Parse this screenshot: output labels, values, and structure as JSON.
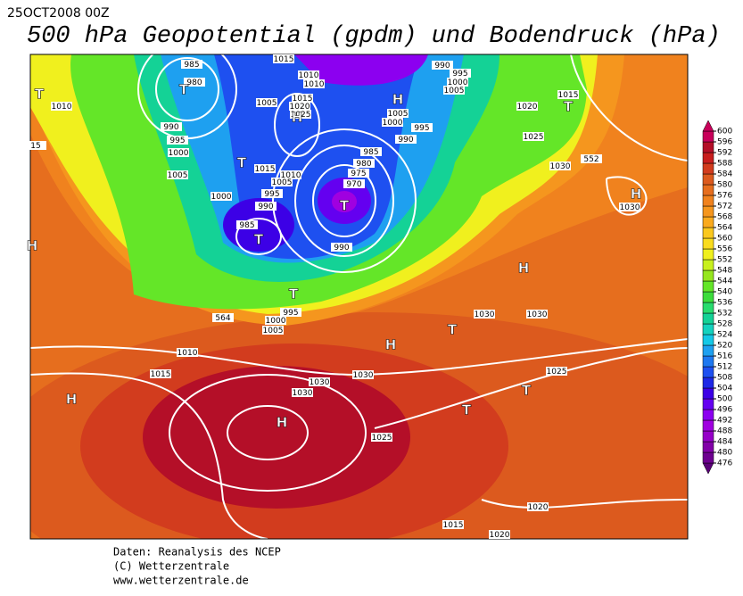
{
  "header": {
    "date": "25OCT2008 00Z",
    "title": "500 hPa Geopotential (gpdm) und Bodendruck (hPa)"
  },
  "footer": [
    "Daten: Reanalysis des NCEP",
    "(C) Wetterzentrale",
    "www.wetterzentrale.de"
  ],
  "colorbar": {
    "levels": [
      476,
      480,
      484,
      488,
      492,
      496,
      500,
      504,
      508,
      512,
      516,
      520,
      524,
      528,
      532,
      536,
      540,
      544,
      548,
      552,
      556,
      560,
      564,
      568,
      572,
      576,
      580,
      584,
      588,
      592,
      596,
      600
    ],
    "colors": [
      "#5a0078",
      "#6e0090",
      "#8200a8",
      "#9600c8",
      "#a000e0",
      "#8c00f0",
      "#6400f0",
      "#3c00e6",
      "#1e28e6",
      "#1e50f0",
      "#1e78f0",
      "#1ea0f0",
      "#14c8e6",
      "#14d2be",
      "#14d296",
      "#28dc6e",
      "#3cdc3c",
      "#64e628",
      "#96e61e",
      "#c8f01e",
      "#f0f01e",
      "#fadc1e",
      "#fac81e",
      "#faaa1e",
      "#f5961e",
      "#f0821e",
      "#e66e1e",
      "#dc5a1e",
      "#d23c1e",
      "#c81e1e",
      "#b40f28",
      "#c8005a"
    ]
  },
  "isobar_labels": [
    985,
    980,
    990,
    995,
    1000,
    1005,
    1010,
    15,
    1015,
    1010,
    1010,
    1005,
    1015,
    1020,
    1025,
    1015,
    1010,
    1005,
    1000,
    995,
    990,
    985,
    985,
    980,
    975,
    970,
    990,
    990,
    995,
    1000,
    1005,
    1005,
    1000,
    995,
    990,
    1020,
    1015,
    1025,
    1030,
    552,
    1030,
    564,
    995,
    1000,
    1005,
    1010,
    1015,
    1030,
    1030,
    1030,
    1030,
    1030,
    1025,
    1025,
    1020,
    1015,
    1020
  ],
  "centers": [
    "T",
    "T",
    "H",
    "H",
    "T",
    "T",
    "T",
    "T",
    "T",
    "H",
    "H",
    "H",
    "H",
    "T",
    "H",
    "T",
    "T",
    "H"
  ]
}
